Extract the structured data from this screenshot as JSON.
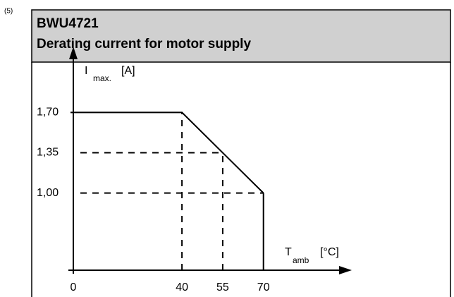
{
  "chart_data": {
    "type": "line",
    "figure_label": "(5)",
    "title": "BWU4721",
    "subtitle": "Derating current for motor supply",
    "ylabel": {
      "main": "I",
      "sub": "max.",
      "unit": "[A]"
    },
    "xlabel": {
      "main": "T",
      "sub": "amb",
      "unit": "[°C]"
    },
    "x": [
      0,
      40,
      70
    ],
    "series": [
      {
        "color": "#000000",
        "values": [
          1.7,
          1.7,
          1.0
        ]
      }
    ],
    "xlim": [
      0,
      102
    ],
    "ylim": [
      0.33,
      2.26
    ],
    "xticks": [
      0,
      40,
      55,
      70
    ],
    "yticks": [
      {
        "value": 1.0,
        "label": "1,00"
      },
      {
        "value": 1.35,
        "label": "1,35"
      },
      {
        "value": 1.7,
        "label": "1,70"
      }
    ]
  }
}
